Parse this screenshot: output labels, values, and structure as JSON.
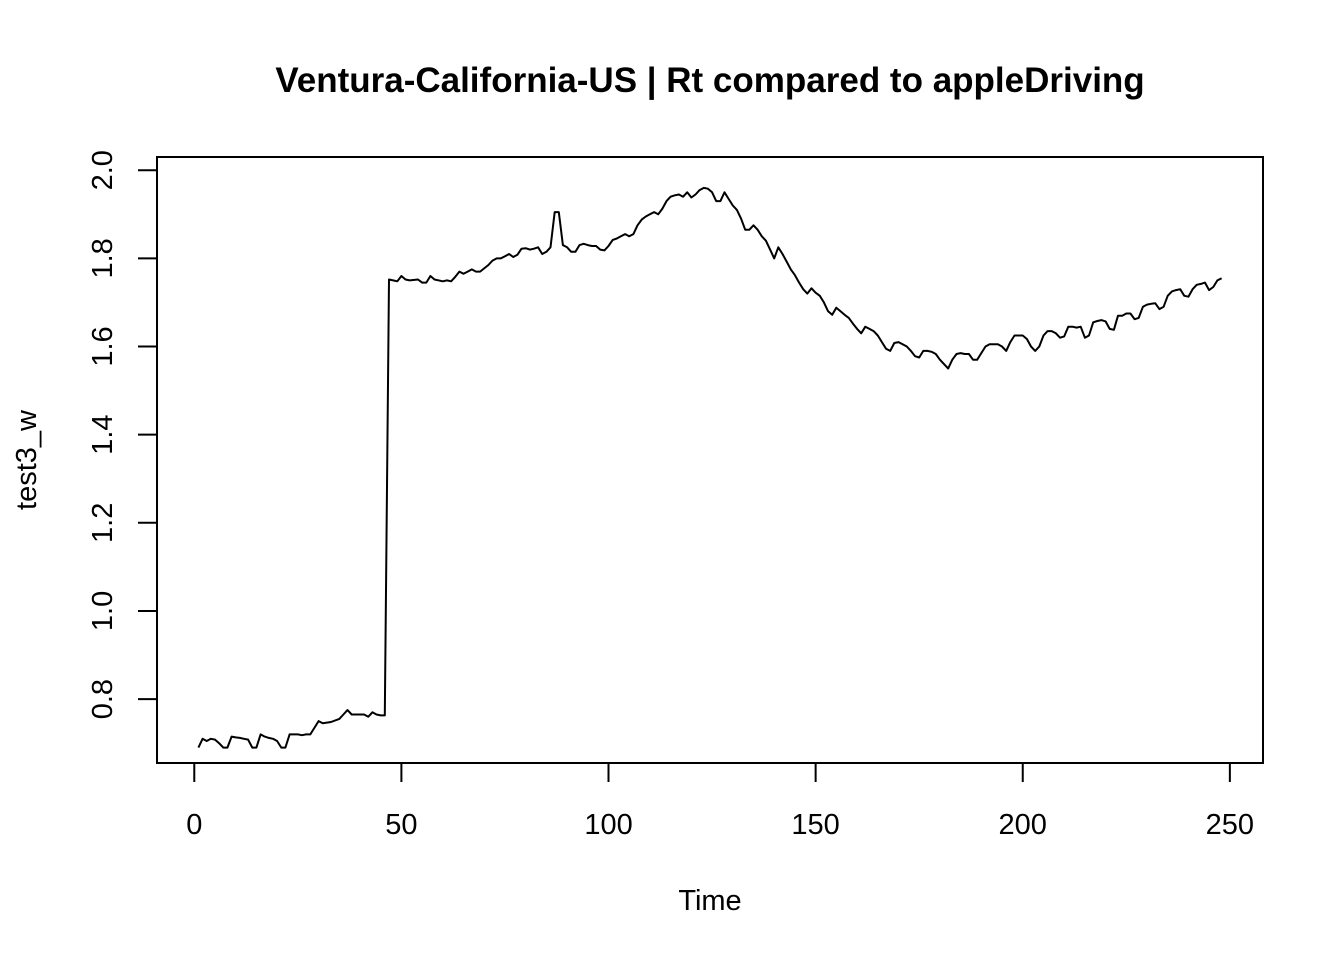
{
  "chart_data": {
    "type": "line",
    "title": "Ventura-California-US | Rt compared to appleDriving",
    "xlabel": "Time",
    "ylabel": "test3_w",
    "x_ticks": [
      "0",
      "50",
      "100",
      "150",
      "200",
      "250"
    ],
    "y_ticks": [
      "0.8",
      "1.0",
      "1.2",
      "1.4",
      "1.6",
      "1.8",
      "2.0"
    ],
    "xlim": [
      -9,
      258
    ],
    "ylim": [
      0.655,
      2.03
    ],
    "grid": false,
    "legend": "none",
    "line_color": "#000000",
    "series": [
      {
        "points": [
          [
            1,
            0.69
          ],
          [
            2,
            0.71
          ],
          [
            3,
            0.705
          ],
          [
            4,
            0.71
          ],
          [
            5,
            0.708
          ],
          [
            6,
            0.7
          ],
          [
            7,
            0.69
          ],
          [
            8,
            0.69
          ],
          [
            9,
            0.715
          ],
          [
            10,
            0.713
          ],
          [
            11,
            0.712
          ],
          [
            12,
            0.71
          ],
          [
            13,
            0.708
          ],
          [
            14,
            0.69
          ],
          [
            15,
            0.69
          ],
          [
            16,
            0.72
          ],
          [
            17,
            0.715
          ],
          [
            18,
            0.712
          ],
          [
            19,
            0.71
          ],
          [
            20,
            0.705
          ],
          [
            21,
            0.69
          ],
          [
            22,
            0.69
          ],
          [
            23,
            0.72
          ],
          [
            24,
            0.72
          ],
          [
            25,
            0.72
          ],
          [
            26,
            0.718
          ],
          [
            27,
            0.72
          ],
          [
            28,
            0.72
          ],
          [
            30,
            0.75
          ],
          [
            31,
            0.745
          ],
          [
            33,
            0.748
          ],
          [
            35,
            0.755
          ],
          [
            36,
            0.765
          ],
          [
            37,
            0.775
          ],
          [
            38,
            0.765
          ],
          [
            40,
            0.765
          ],
          [
            41,
            0.765
          ],
          [
            42,
            0.76
          ],
          [
            43,
            0.77
          ],
          [
            44,
            0.765
          ],
          [
            45,
            0.763
          ],
          [
            46,
            0.763
          ],
          [
            47,
            1.752
          ],
          [
            48,
            1.75
          ],
          [
            49,
            1.748
          ],
          [
            50,
            1.76
          ],
          [
            51,
            1.752
          ],
          [
            52,
            1.75
          ],
          [
            54,
            1.752
          ],
          [
            55,
            1.745
          ],
          [
            56,
            1.745
          ],
          [
            57,
            1.76
          ],
          [
            58,
            1.752
          ],
          [
            60,
            1.748
          ],
          [
            61,
            1.75
          ],
          [
            62,
            1.748
          ],
          [
            63,
            1.758
          ],
          [
            64,
            1.77
          ],
          [
            65,
            1.765
          ],
          [
            66,
            1.77
          ],
          [
            67,
            1.775
          ],
          [
            68,
            1.77
          ],
          [
            69,
            1.77
          ],
          [
            71,
            1.785
          ],
          [
            72,
            1.795
          ],
          [
            73,
            1.8
          ],
          [
            74,
            1.8
          ],
          [
            75,
            1.805
          ],
          [
            76,
            1.81
          ],
          [
            77,
            1.803
          ],
          [
            78,
            1.808
          ],
          [
            79,
            1.822
          ],
          [
            80,
            1.823
          ],
          [
            81,
            1.82
          ],
          [
            82,
            1.822
          ],
          [
            83,
            1.825
          ],
          [
            84,
            1.81
          ],
          [
            85,
            1.815
          ],
          [
            86,
            1.825
          ],
          [
            87,
            1.905
          ],
          [
            88,
            1.905
          ],
          [
            89,
            1.83
          ],
          [
            90,
            1.825
          ],
          [
            91,
            1.815
          ],
          [
            92,
            1.815
          ],
          [
            93,
            1.83
          ],
          [
            94,
            1.833
          ],
          [
            95,
            1.83
          ],
          [
            96,
            1.828
          ],
          [
            97,
            1.828
          ],
          [
            98,
            1.82
          ],
          [
            99,
            1.818
          ],
          [
            100,
            1.828
          ],
          [
            101,
            1.842
          ],
          [
            102,
            1.845
          ],
          [
            103,
            1.85
          ],
          [
            104,
            1.855
          ],
          [
            105,
            1.85
          ],
          [
            106,
            1.855
          ],
          [
            107,
            1.875
          ],
          [
            108,
            1.888
          ],
          [
            109,
            1.895
          ],
          [
            110,
            1.9
          ],
          [
            111,
            1.905
          ],
          [
            112,
            1.9
          ],
          [
            113,
            1.913
          ],
          [
            114,
            1.93
          ],
          [
            115,
            1.94
          ],
          [
            116,
            1.943
          ],
          [
            117,
            1.945
          ],
          [
            118,
            1.94
          ],
          [
            119,
            1.95
          ],
          [
            120,
            1.938
          ],
          [
            121,
            1.945
          ],
          [
            122,
            1.955
          ],
          [
            123,
            1.96
          ],
          [
            124,
            1.958
          ],
          [
            125,
            1.95
          ],
          [
            126,
            1.93
          ],
          [
            127,
            1.93
          ],
          [
            128,
            1.95
          ],
          [
            129,
            1.935
          ],
          [
            130,
            1.92
          ],
          [
            131,
            1.91
          ],
          [
            132,
            1.89
          ],
          [
            133,
            1.865
          ],
          [
            134,
            1.865
          ],
          [
            135,
            1.875
          ],
          [
            136,
            1.865
          ],
          [
            137,
            1.85
          ],
          [
            138,
            1.84
          ],
          [
            139,
            1.82
          ],
          [
            140,
            1.8
          ],
          [
            141,
            1.825
          ],
          [
            142,
            1.81
          ],
          [
            143,
            1.793
          ],
          [
            144,
            1.775
          ],
          [
            145,
            1.762
          ],
          [
            146,
            1.745
          ],
          [
            147,
            1.73
          ],
          [
            148,
            1.72
          ],
          [
            149,
            1.732
          ],
          [
            150,
            1.722
          ],
          [
            151,
            1.715
          ],
          [
            152,
            1.7
          ],
          [
            153,
            1.68
          ],
          [
            154,
            1.672
          ],
          [
            155,
            1.688
          ],
          [
            156,
            1.68
          ],
          [
            157,
            1.672
          ],
          [
            158,
            1.665
          ],
          [
            159,
            1.652
          ],
          [
            160,
            1.64
          ],
          [
            161,
            1.63
          ],
          [
            162,
            1.645
          ],
          [
            163,
            1.64
          ],
          [
            164,
            1.635
          ],
          [
            165,
            1.625
          ],
          [
            166,
            1.61
          ],
          [
            167,
            1.595
          ],
          [
            168,
            1.59
          ],
          [
            169,
            1.608
          ],
          [
            170,
            1.61
          ],
          [
            171,
            1.605
          ],
          [
            172,
            1.6
          ],
          [
            173,
            1.59
          ],
          [
            174,
            1.578
          ],
          [
            175,
            1.575
          ],
          [
            176,
            1.59
          ],
          [
            177,
            1.59
          ],
          [
            178,
            1.588
          ],
          [
            179,
            1.583
          ],
          [
            180,
            1.57
          ],
          [
            181,
            1.56
          ],
          [
            182,
            1.55
          ],
          [
            183,
            1.57
          ],
          [
            184,
            1.583
          ],
          [
            185,
            1.585
          ],
          [
            186,
            1.583
          ],
          [
            187,
            1.583
          ],
          [
            188,
            1.57
          ],
          [
            189,
            1.57
          ],
          [
            190,
            1.585
          ],
          [
            191,
            1.6
          ],
          [
            192,
            1.605
          ],
          [
            193,
            1.605
          ],
          [
            194,
            1.605
          ],
          [
            195,
            1.6
          ],
          [
            196,
            1.59
          ],
          [
            197,
            1.61
          ],
          [
            198,
            1.625
          ],
          [
            199,
            1.625
          ],
          [
            200,
            1.625
          ],
          [
            201,
            1.617
          ],
          [
            202,
            1.6
          ],
          [
            203,
            1.59
          ],
          [
            204,
            1.6
          ],
          [
            205,
            1.625
          ],
          [
            206,
            1.635
          ],
          [
            207,
            1.635
          ],
          [
            208,
            1.63
          ],
          [
            209,
            1.62
          ],
          [
            210,
            1.623
          ],
          [
            211,
            1.645
          ],
          [
            212,
            1.645
          ],
          [
            213,
            1.643
          ],
          [
            214,
            1.645
          ],
          [
            215,
            1.62
          ],
          [
            216,
            1.625
          ],
          [
            217,
            1.655
          ],
          [
            218,
            1.658
          ],
          [
            219,
            1.66
          ],
          [
            220,
            1.657
          ],
          [
            221,
            1.64
          ],
          [
            222,
            1.638
          ],
          [
            223,
            1.67
          ],
          [
            224,
            1.67
          ],
          [
            225,
            1.675
          ],
          [
            226,
            1.675
          ],
          [
            227,
            1.662
          ],
          [
            228,
            1.665
          ],
          [
            229,
            1.69
          ],
          [
            230,
            1.695
          ],
          [
            231,
            1.697
          ],
          [
            232,
            1.698
          ],
          [
            233,
            1.685
          ],
          [
            234,
            1.69
          ],
          [
            235,
            1.715
          ],
          [
            236,
            1.725
          ],
          [
            237,
            1.728
          ],
          [
            238,
            1.73
          ],
          [
            239,
            1.715
          ],
          [
            240,
            1.713
          ],
          [
            241,
            1.73
          ],
          [
            242,
            1.74
          ],
          [
            243,
            1.742
          ],
          [
            244,
            1.745
          ],
          [
            245,
            1.728
          ],
          [
            246,
            1.735
          ],
          [
            247,
            1.75
          ],
          [
            248,
            1.755
          ]
        ]
      }
    ]
  }
}
